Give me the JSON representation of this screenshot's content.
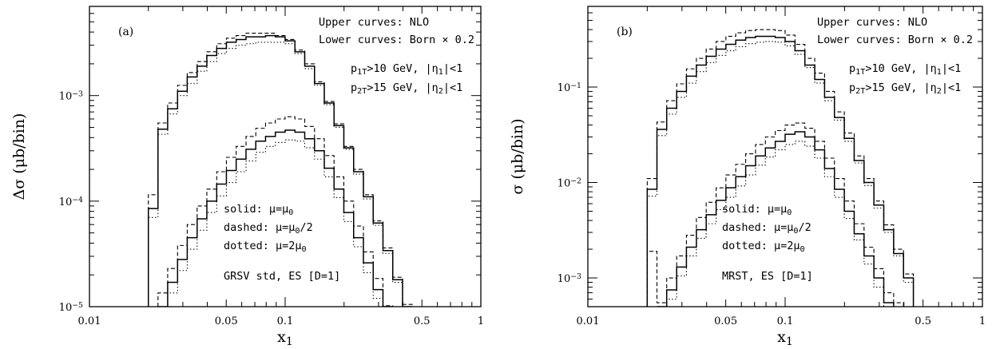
{
  "chart_data": [
    {
      "type": "line",
      "panel_label": "(a)",
      "xlabel": "x",
      "xlabel_sub": "1",
      "ylabel": "Δσ (μb/bin)",
      "x_scale": "log",
      "y_scale": "log",
      "xlim": [
        0.01,
        1
      ],
      "ylim": [
        1e-05,
        0.007
      ],
      "x_ticks": [
        {
          "value": 0.01,
          "label": "0.01"
        },
        {
          "value": 0.05,
          "label": "0.05"
        },
        {
          "value": 0.1,
          "label": "0.1"
        },
        {
          "value": 0.5,
          "label": "0.5"
        },
        {
          "value": 1,
          "label": "1"
        }
      ],
      "y_ticks": [
        {
          "value": 1e-05,
          "base": "10",
          "exp": "−5"
        },
        {
          "value": 0.0001,
          "base": "10",
          "exp": "−4"
        },
        {
          "value": 0.001,
          "base": "10",
          "exp": "−3"
        }
      ],
      "bin_edges": [
        0.02,
        0.0224,
        0.0251,
        0.0282,
        0.0316,
        0.0355,
        0.0398,
        0.0447,
        0.0501,
        0.0562,
        0.0631,
        0.0708,
        0.0794,
        0.0891,
        0.1,
        0.1122,
        0.1259,
        0.1413,
        0.1585,
        0.1778,
        0.1995,
        0.2239,
        0.2512,
        0.2818,
        0.3162,
        0.3548,
        0.3981,
        0.4467
      ],
      "series": [
        {
          "group": "upper",
          "style": "solid",
          "values": [
            8.5e-05,
            0.00048,
            0.00075,
            0.0011,
            0.0015,
            0.0019,
            0.0024,
            0.0028,
            0.0032,
            0.0034,
            0.0036,
            0.0036,
            0.0037,
            0.0036,
            0.0033,
            0.0026,
            0.0019,
            0.0013,
            0.00085,
            0.00052,
            0.00032,
            0.00019,
            0.00011,
            6.2e-05,
            3.4e-05,
            1.8e-05,
            1e-05
          ]
        },
        {
          "group": "upper",
          "style": "dashed",
          "values": [
            0.000115,
            0.00055,
            0.00085,
            0.00125,
            0.00165,
            0.0021,
            0.0026,
            0.0031,
            0.0035,
            0.0037,
            0.0039,
            0.0039,
            0.0039,
            0.0037,
            0.0034,
            0.0027,
            0.002,
            0.00135,
            0.00088,
            0.00054,
            0.00033,
            0.0002,
            0.000115,
            6.5e-05,
            3.6e-05,
            1.9e-05,
            1.05e-05
          ]
        },
        {
          "group": "upper",
          "style": "dotted",
          "values": [
            7e-05,
            0.00043,
            0.00067,
            0.001,
            0.0013,
            0.0017,
            0.0021,
            0.0025,
            0.0028,
            0.003,
            0.0031,
            0.0032,
            0.0032,
            0.0032,
            0.0031,
            0.0025,
            0.0018,
            0.00125,
            0.00082,
            0.0005,
            0.00031,
            0.00018,
            0.000105,
            5.9e-05,
            3.2e-05,
            1.7e-05,
            9.5e-06
          ]
        },
        {
          "group": "lower",
          "style": "solid",
          "values": [
            null,
            1e-05,
            1.7e-05,
            2.8e-05,
            4.5e-05,
            6.8e-05,
            0.0001,
            0.000145,
            0.000195,
            0.00025,
            0.00031,
            0.00037,
            0.00041,
            0.00045,
            0.00047,
            0.00045,
            0.00039,
            0.0003,
            0.000205,
            0.00013,
            7.8e-05,
            4.5e-05,
            2.6e-05,
            1.45e-05,
            8e-06,
            null,
            null
          ]
        },
        {
          "group": "lower",
          "style": "dashed",
          "values": [
            null,
            1.35e-05,
            2.3e-05,
            3.8e-05,
            6e-05,
            9e-05,
            0.00013,
            0.00019,
            0.00026,
            0.00033,
            0.00041,
            0.00049,
            0.00055,
            0.0006,
            0.00063,
            0.0006,
            0.00051,
            0.00039,
            0.00027,
            0.00017,
            0.0001,
            5.8e-05,
            3.3e-05,
            1.85e-05,
            1.02e-05,
            null,
            null
          ]
        },
        {
          "group": "lower",
          "style": "dotted",
          "values": [
            null,
            null,
            1.35e-05,
            2.2e-05,
            3.5e-05,
            5.3e-05,
            7.8e-05,
            0.000112,
            0.00015,
            0.00019,
            0.00024,
            0.00029,
            0.00033,
            0.00036,
            0.00038,
            0.00037,
            0.00032,
            0.00025,
            0.00017,
            0.000108,
            6.4e-05,
            3.7e-05,
            2.1e-05,
            1.2e-05,
            null,
            null,
            null
          ]
        }
      ],
      "annotations": {
        "upper_curves": "Upper curves: NLO",
        "lower_curves": "Lower curves: Born × 0.2",
        "cut1_prefix": "p",
        "cut1_sub": "1T",
        "cut1_mid": ">10 GeV, |η",
        "cut1_sub2": "1",
        "cut1_suffix": "|<1",
        "cut2_prefix": "p",
        "cut2_sub": "2T",
        "cut2_mid": ">15 GeV, |η",
        "cut2_sub2": "2",
        "cut2_suffix": "|<1",
        "legend_solid": "solid: μ=μ",
        "legend_solid_sub": "0",
        "legend_dashed": "dashed: μ=μ",
        "legend_dashed_sub": "0",
        "legend_dashed_suffix": "/2",
        "legend_dotted": "dotted: μ=2μ",
        "legend_dotted_sub": "0",
        "pdf_label": "GRSV std, ES [D=1]"
      }
    },
    {
      "type": "line",
      "panel_label": "(b)",
      "xlabel": "x",
      "xlabel_sub": "1",
      "ylabel": "σ (μb/bin)",
      "x_scale": "log",
      "y_scale": "log",
      "xlim": [
        0.01,
        1
      ],
      "ylim": [
        0.0005,
        0.7
      ],
      "x_ticks": [
        {
          "value": 0.01,
          "label": "0.01"
        },
        {
          "value": 0.05,
          "label": "0.05"
        },
        {
          "value": 0.1,
          "label": "0.1"
        },
        {
          "value": 0.5,
          "label": "0.5"
        },
        {
          "value": 1,
          "label": "1"
        }
      ],
      "y_ticks": [
        {
          "value": 0.001,
          "base": "10",
          "exp": "−3"
        },
        {
          "value": 0.01,
          "base": "10",
          "exp": "−2"
        },
        {
          "value": 0.1,
          "base": "10",
          "exp": "−1"
        }
      ],
      "bin_edges": [
        0.02,
        0.0224,
        0.0251,
        0.0282,
        0.0316,
        0.0355,
        0.0398,
        0.0447,
        0.0501,
        0.0562,
        0.0631,
        0.0708,
        0.0794,
        0.0891,
        0.1,
        0.1122,
        0.1259,
        0.1413,
        0.1585,
        0.1778,
        0.1995,
        0.2239,
        0.2512,
        0.2818,
        0.3162,
        0.3548,
        0.3981,
        0.4467
      ],
      "series": [
        {
          "group": "upper",
          "style": "solid",
          "values": [
            0.0085,
            0.036,
            0.06,
            0.09,
            0.13,
            0.17,
            0.21,
            0.25,
            0.28,
            0.31,
            0.33,
            0.34,
            0.34,
            0.33,
            0.3,
            0.24,
            0.17,
            0.12,
            0.078,
            0.048,
            0.029,
            0.017,
            0.01,
            0.0058,
            0.0032,
            0.0018,
            0.001
          ]
        },
        {
          "group": "upper",
          "style": "dashed",
          "values": [
            0.011,
            0.043,
            0.072,
            0.108,
            0.155,
            0.2,
            0.25,
            0.3,
            0.34,
            0.37,
            0.39,
            0.4,
            0.4,
            0.39,
            0.35,
            0.28,
            0.2,
            0.14,
            0.09,
            0.055,
            0.033,
            0.019,
            0.011,
            0.0064,
            0.0036,
            0.002,
            0.0011
          ]
        },
        {
          "group": "upper",
          "style": "dotted",
          "values": [
            0.0072,
            0.031,
            0.052,
            0.078,
            0.11,
            0.145,
            0.18,
            0.215,
            0.24,
            0.265,
            0.285,
            0.295,
            0.3,
            0.295,
            0.27,
            0.22,
            0.16,
            0.11,
            0.072,
            0.045,
            0.027,
            0.016,
            0.0093,
            0.0054,
            0.003,
            0.0017,
            0.0009
          ]
        },
        {
          "group": "lower",
          "style": "solid",
          "values": [
            null,
            0.0004,
            0.00075,
            0.0013,
            0.0021,
            0.0032,
            0.0046,
            0.0065,
            0.0088,
            0.0115,
            0.015,
            0.019,
            0.023,
            0.027,
            0.032,
            0.034,
            0.03,
            0.022,
            0.014,
            0.0085,
            0.005,
            0.0029,
            0.0017,
            0.001,
            0.00055,
            null,
            null
          ]
        },
        {
          "group": "lower",
          "style": "dashed",
          "values": [
            0.0019,
            0.00055,
            0.001,
            0.0017,
            0.0028,
            0.0043,
            0.0062,
            0.0088,
            0.012,
            0.0155,
            0.02,
            0.025,
            0.03,
            0.035,
            0.04,
            0.042,
            0.037,
            0.027,
            0.018,
            0.011,
            0.0064,
            0.0037,
            0.0021,
            0.00125,
            0.0007,
            0.00055,
            null
          ]
        },
        {
          "group": "lower",
          "style": "dotted",
          "values": [
            null,
            null,
            0.0006,
            0.00105,
            0.0017,
            0.0026,
            0.0037,
            0.0052,
            0.007,
            0.0092,
            0.012,
            0.0152,
            0.0185,
            0.022,
            0.025,
            0.027,
            0.024,
            0.018,
            0.0115,
            0.007,
            0.0042,
            0.0025,
            0.0014,
            0.0008,
            null,
            null,
            null
          ]
        }
      ],
      "annotations": {
        "upper_curves": "Upper curves: NLO",
        "lower_curves": "Lower curves: Born × 0.2",
        "cut1_prefix": "p",
        "cut1_sub": "1T",
        "cut1_mid": ">10 GeV, |η",
        "cut1_sub2": "1",
        "cut1_suffix": "|<1",
        "cut2_prefix": "p",
        "cut2_sub": "2T",
        "cut2_mid": ">15 GeV, |η",
        "cut2_sub2": "2",
        "cut2_suffix": "|<1",
        "legend_solid": "solid: μ=μ",
        "legend_solid_sub": "0",
        "legend_dashed": "dashed: μ=μ",
        "legend_dashed_sub": "0",
        "legend_dashed_suffix": "/2",
        "legend_dotted": "dotted: μ=2μ",
        "legend_dotted_sub": "0",
        "pdf_label": "MRST, ES [D=1]"
      }
    }
  ]
}
